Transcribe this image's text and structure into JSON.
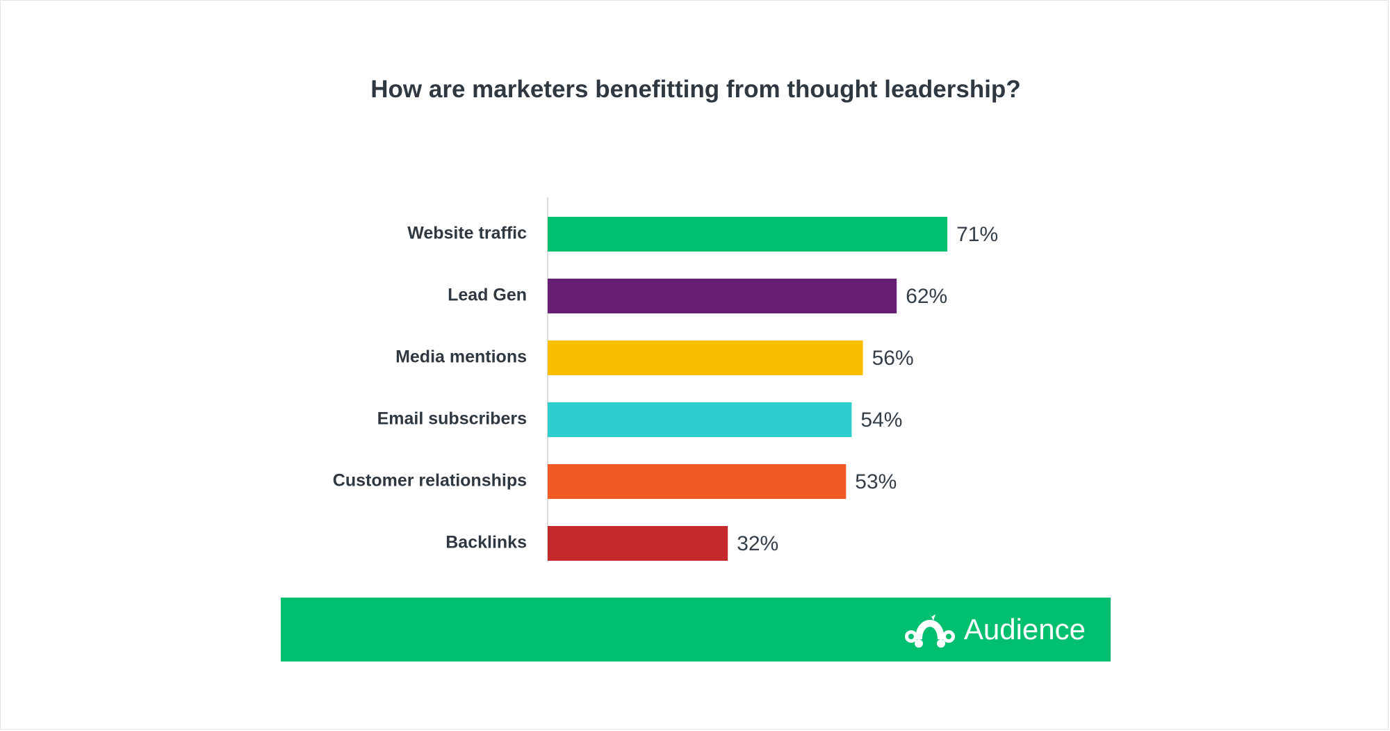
{
  "chart_data": {
    "type": "bar",
    "orientation": "horizontal",
    "title": "How are marketers benefitting from thought leadership?",
    "categories": [
      "Website traffic",
      "Lead Gen",
      "Media mentions",
      "Email subscribers",
      "Customer relationships",
      "Backlinks"
    ],
    "values": [
      71,
      62,
      56,
      54,
      53,
      32
    ],
    "value_labels": [
      "71%",
      "62%",
      "56%",
      "54%",
      "53%",
      "32%"
    ],
    "colors": [
      "#00bf6f",
      "#671e75",
      "#f9be00",
      "#2dcccd",
      "#f05b24",
      "#c42a2b"
    ],
    "xlim": [
      0,
      100
    ],
    "grid": false,
    "legend": "none"
  },
  "footer": {
    "brand_name": "Audience",
    "icon": "monkey-logo-icon",
    "color": "#00bf6f"
  }
}
